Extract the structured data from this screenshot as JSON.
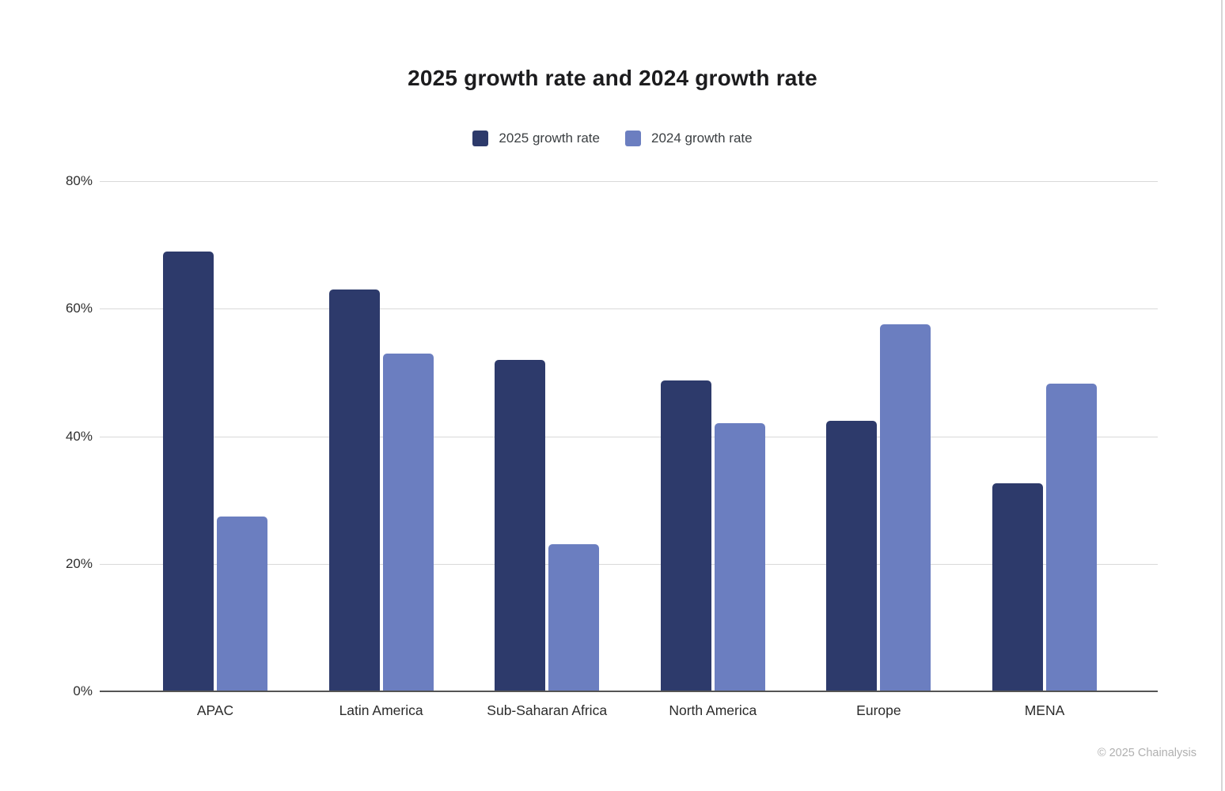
{
  "chart_data": {
    "type": "bar",
    "title": "2025 growth rate and 2024 growth rate",
    "categories": [
      "APAC",
      "Latin America",
      "Sub-Saharan Africa",
      "North America",
      "Europe",
      "MENA"
    ],
    "series": [
      {
        "name": "2025 growth rate",
        "color": "#2d3a6b",
        "values": [
          69,
          63,
          52,
          48.8,
          42.4,
          32.6
        ]
      },
      {
        "name": "2024 growth rate",
        "color": "#6b7ec0",
        "values": [
          27.4,
          53,
          23.1,
          42,
          57.5,
          48.2
        ]
      }
    ],
    "xlabel": "",
    "ylabel": "",
    "ylim": [
      0,
      80
    ],
    "yticks": [
      "0%",
      "20%",
      "40%",
      "60%",
      "80%"
    ],
    "ytick_values": [
      0,
      20,
      40,
      60,
      80
    ],
    "grid": true,
    "legend_position": "top",
    "gridline_color": "#d9d9d9",
    "axis_color": "#545454"
  },
  "footer": {
    "copyright": "© 2025 Chainalysis"
  }
}
